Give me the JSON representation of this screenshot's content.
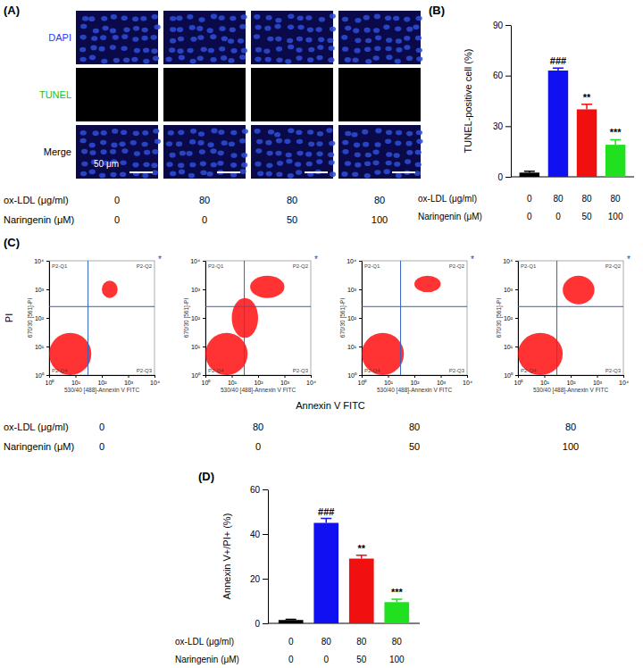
{
  "chart_data": [
    {
      "type": "bar",
      "title": "(B)",
      "y_label": "TUNEL-positive cell (%)",
      "categories": [
        null,
        null,
        null,
        null
      ],
      "values": [
        2.5,
        63,
        40,
        19
      ],
      "errors": [
        0.8,
        1.5,
        3,
        3
      ],
      "colors": [
        "#000000",
        "#1010f0",
        "#f01010",
        "#20e020"
      ],
      "ylim": [
        0,
        90
      ],
      "yticks": [
        0,
        30,
        60,
        90
      ],
      "annotations": [
        {
          "index": 1,
          "text": "###"
        },
        {
          "index": 2,
          "text": "**"
        },
        {
          "index": 3,
          "text": "***"
        }
      ],
      "conditions": [
        {
          "label": "ox-LDL (μg/ml)",
          "values": [
            0,
            80,
            80,
            80
          ]
        },
        {
          "label": "Naringenin (μM)",
          "values": [
            0,
            0,
            50,
            100
          ]
        }
      ]
    },
    {
      "type": "bar",
      "title": "(D)",
      "y_label": "Annexin V+/PI+ (%)",
      "categories": [
        null,
        null,
        null,
        null
      ],
      "values": [
        1.5,
        45,
        29,
        9.5
      ],
      "errors": [
        0.3,
        2,
        1.5,
        1.3
      ],
      "colors": [
        "#000000",
        "#1010f0",
        "#f01010",
        "#20e020"
      ],
      "ylim": [
        0,
        60
      ],
      "yticks": [
        0,
        20,
        40,
        60
      ],
      "annotations": [
        {
          "index": 1,
          "text": "###"
        },
        {
          "index": 2,
          "text": "**"
        },
        {
          "index": 3,
          "text": "***"
        }
      ],
      "conditions": [
        {
          "label": "ox-LDL (μg/ml)",
          "values": [
            0,
            80,
            80,
            80
          ]
        },
        {
          "label": "Naringenin (μM)",
          "values": [
            0,
            0,
            50,
            100
          ]
        }
      ]
    },
    {
      "type": "scatter",
      "log": true,
      "color": "#ff0000",
      "x_label": "530/40 [488]-Annexin V FITC",
      "y_label": "670/30 [561]-PI",
      "xlim": [
        1,
        10000
      ],
      "ylim": [
        1,
        10000
      ],
      "xticks": [
        {
          "value": 1,
          "label": "10⁰"
        },
        {
          "value": 10,
          "label": "10¹"
        },
        {
          "value": 100,
          "label": "10²"
        },
        {
          "value": 1000,
          "label": "10³"
        },
        {
          "value": 10000,
          "label": "10⁴"
        }
      ],
      "yticks": [
        {
          "value": 1,
          "label": "10⁰"
        },
        {
          "value": 10,
          "label": "10¹"
        },
        {
          "value": 100,
          "label": "10²"
        },
        {
          "value": 1000,
          "label": "10³"
        },
        {
          "value": 10000,
          "label": "10⁴"
        }
      ],
      "gates": {
        "x": 30,
        "y": 250
      },
      "quadrant_labels": [
        "P2-Q1",
        "P2-Q2",
        "P2-Q3",
        "P2-Q4"
      ],
      "annotation": "*",
      "clusters": [
        {
          "x": [
            1,
            40
          ],
          "y": [
            1,
            30
          ]
        },
        {
          "x": [
            100,
            400
          ],
          "y": [
            500,
            2000
          ]
        }
      ]
    },
    {
      "type": "scatter",
      "log": true,
      "color": "#ff0000",
      "x_label": "530/40 [488]-Annexin V FITC",
      "y_label": "670/30 [561]-PI",
      "xlim": [
        1,
        10000
      ],
      "ylim": [
        1,
        10000
      ],
      "xticks": [
        {
          "value": 1,
          "label": "10⁰"
        },
        {
          "value": 10,
          "label": "10¹"
        },
        {
          "value": 100,
          "label": "10²"
        },
        {
          "value": 1000,
          "label": "10³"
        },
        {
          "value": 10000,
          "label": "10⁴"
        }
      ],
      "yticks": [
        {
          "value": 1,
          "label": "10⁰"
        },
        {
          "value": 10,
          "label": "10¹"
        },
        {
          "value": 100,
          "label": "10²"
        },
        {
          "value": 1000,
          "label": "10³"
        },
        {
          "value": 10000,
          "label": "10⁴"
        }
      ],
      "gates": {
        "x": 30,
        "y": 250
      },
      "quadrant_labels": [
        "P2-Q1",
        "P2-Q2",
        "P2-Q3",
        "P2-Q4"
      ],
      "annotation": "*",
      "clusters": [
        {
          "x": [
            1,
            40
          ],
          "y": [
            1,
            30
          ]
        },
        {
          "x": [
            10,
            100
          ],
          "y": [
            20,
            500
          ]
        },
        {
          "x": [
            50,
            1000
          ],
          "y": [
            500,
            3000
          ]
        }
      ]
    },
    {
      "type": "scatter",
      "log": true,
      "color": "#ff0000",
      "x_label": "530/40 [488]-Annexin V FITC",
      "y_label": "670/30 [561]-PI",
      "xlim": [
        1,
        10000
      ],
      "ylim": [
        1,
        10000
      ],
      "xticks": [
        {
          "value": 1,
          "label": "10⁰"
        },
        {
          "value": 10,
          "label": "10¹"
        },
        {
          "value": 100,
          "label": "10²"
        },
        {
          "value": 1000,
          "label": "10³"
        },
        {
          "value": 10000,
          "label": "10⁴"
        }
      ],
      "yticks": [
        {
          "value": 1,
          "label": "10⁰"
        },
        {
          "value": 10,
          "label": "10¹"
        },
        {
          "value": 100,
          "label": "10²"
        },
        {
          "value": 1000,
          "label": "10³"
        },
        {
          "value": 10000,
          "label": "10⁴"
        }
      ],
      "gates": {
        "x": 30,
        "y": 250
      },
      "quadrant_labels": [
        "P2-Q1",
        "P2-Q2",
        "P2-Q3",
        "P2-Q4"
      ],
      "annotation": "*",
      "clusters": [
        {
          "x": [
            1,
            40
          ],
          "y": [
            1,
            30
          ]
        },
        {
          "x": [
            100,
            1000
          ],
          "y": [
            800,
            3000
          ]
        }
      ]
    },
    {
      "type": "scatter",
      "log": true,
      "color": "#ff0000",
      "x_label": "530/40 [488]-Annexin V FITC",
      "y_label": "670/30 [561]-PI",
      "xlim": [
        1,
        10000
      ],
      "ylim": [
        1,
        10000
      ],
      "xticks": [
        {
          "value": 1,
          "label": "10⁰"
        },
        {
          "value": 10,
          "label": "10¹"
        },
        {
          "value": 100,
          "label": "10²"
        },
        {
          "value": 1000,
          "label": "10³"
        },
        {
          "value": 10000,
          "label": "10⁴"
        }
      ],
      "yticks": [
        {
          "value": 1,
          "label": "10⁰"
        },
        {
          "value": 10,
          "label": "10¹"
        },
        {
          "value": 100,
          "label": "10²"
        },
        {
          "value": 1000,
          "label": "10³"
        },
        {
          "value": 10000,
          "label": "10⁴"
        }
      ],
      "gates": {
        "x": 30,
        "y": 250
      },
      "quadrant_labels": [
        "P2-Q1",
        "P2-Q2",
        "P2-Q3",
        "P2-Q4"
      ],
      "annotation": "*",
      "clusters": [
        {
          "x": [
            1,
            50
          ],
          "y": [
            1,
            30
          ]
        },
        {
          "x": [
            50,
            800
          ],
          "y": [
            300,
            3000
          ]
        }
      ]
    }
  ],
  "panel_a": {
    "label": "(A)",
    "rows": [
      "DAPI",
      "TUNEL",
      "Merge"
    ],
    "scale_bar": "50 μm",
    "conditions": [
      {
        "label": "ox-LDL (μg/ml)",
        "values": [
          0,
          80,
          80,
          80
        ]
      },
      {
        "label": "Naringenin (μM)",
        "values": [
          0,
          0,
          50,
          100
        ]
      }
    ]
  },
  "panel_c": {
    "label": "(C)",
    "x_label": "Annexin V FITC",
    "y_label": "PI",
    "conditions": [
      {
        "label": "ox-LDL (μg/ml)",
        "values": [
          0,
          80,
          80,
          80
        ]
      },
      {
        "label": "Naringenin (μM)",
        "values": [
          0,
          0,
          50,
          100
        ]
      }
    ]
  }
}
